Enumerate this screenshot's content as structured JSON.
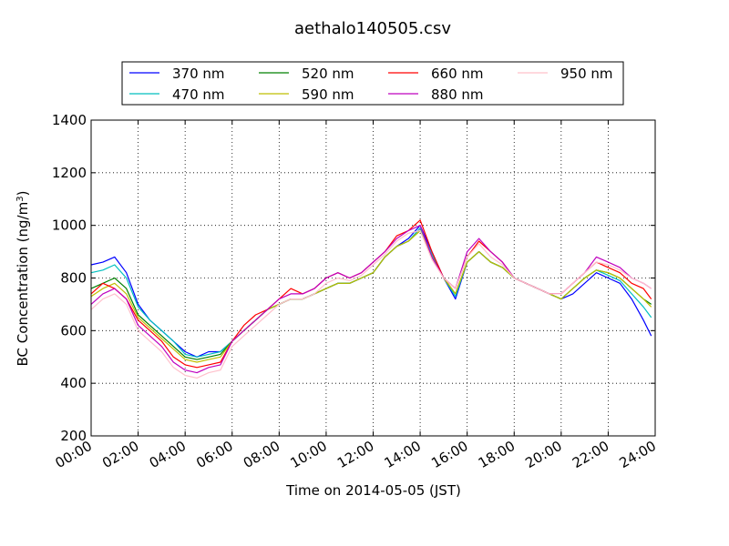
{
  "chart_data": {
    "type": "line",
    "title": "aethalo140505.csv",
    "xlabel": "Time on 2014-05-05 (JST)",
    "ylabel": "BC Concentration (ng/m",
    "ylabel_sup": "3",
    "ylabel_end": ")",
    "xlim": [
      "00:00",
      "24:00"
    ],
    "ylim": [
      200,
      1400
    ],
    "x_ticks": [
      "00:00",
      "02:00",
      "04:00",
      "06:00",
      "08:00",
      "10:00",
      "12:00",
      "14:00",
      "16:00",
      "18:00",
      "20:00",
      "22:00",
      "24:00"
    ],
    "y_ticks": [
      200,
      400,
      600,
      800,
      1000,
      1200,
      1400
    ],
    "grid": true,
    "legend_position": "top-center",
    "x": [
      "00:00",
      "00:30",
      "01:00",
      "01:30",
      "02:00",
      "02:30",
      "03:00",
      "03:30",
      "04:00",
      "04:30",
      "05:00",
      "05:30",
      "06:00",
      "06:30",
      "07:00",
      "07:30",
      "08:00",
      "08:30",
      "09:00",
      "09:30",
      "10:00",
      "10:30",
      "11:00",
      "11:30",
      "12:00",
      "12:30",
      "13:00",
      "13:30",
      "14:00",
      "14:30",
      "15:00",
      "15:30",
      "16:00",
      "16:30",
      "17:00",
      "17:30",
      "18:00",
      "18:30",
      "19:00",
      "19:30",
      "20:00",
      "20:30",
      "21:00",
      "21:30",
      "22:00",
      "22:30",
      "23:00",
      "23:30",
      "23:50"
    ],
    "series": [
      {
        "name": "370 nm",
        "color": "#0000ff",
        "values": [
          850,
          860,
          880,
          820,
          700,
          640,
          600,
          560,
          520,
          500,
          520,
          520,
          560,
          600,
          640,
          680,
          700,
          720,
          720,
          740,
          760,
          780,
          780,
          800,
          820,
          880,
          920,
          950,
          1000,
          900,
          800,
          720,
          860,
          900,
          860,
          840,
          800,
          780,
          760,
          740,
          720,
          740,
          780,
          820,
          800,
          780,
          720,
          640,
          580
        ]
      },
      {
        "name": "470 nm",
        "color": "#00bfbf",
        "values": [
          820,
          830,
          850,
          800,
          690,
          640,
          600,
          560,
          510,
          500,
          510,
          520,
          560,
          600,
          640,
          680,
          700,
          720,
          720,
          740,
          760,
          780,
          780,
          800,
          820,
          880,
          920,
          940,
          990,
          890,
          800,
          730,
          860,
          900,
          860,
          840,
          800,
          780,
          760,
          740,
          720,
          760,
          800,
          830,
          810,
          790,
          740,
          690,
          650
        ]
      },
      {
        "name": "520 nm",
        "color": "#008000",
        "values": [
          760,
          780,
          800,
          760,
          660,
          620,
          580,
          540,
          500,
          490,
          500,
          510,
          560,
          600,
          640,
          680,
          700,
          720,
          720,
          740,
          760,
          780,
          780,
          800,
          820,
          880,
          920,
          940,
          980,
          880,
          800,
          740,
          860,
          900,
          860,
          840,
          800,
          780,
          760,
          740,
          720,
          760,
          800,
          830,
          820,
          800,
          760,
          720,
          700
        ]
      },
      {
        "name": "590 nm",
        "color": "#bfbf00",
        "values": [
          730,
          760,
          780,
          740,
          650,
          610,
          570,
          530,
          490,
          480,
          490,
          500,
          560,
          600,
          640,
          680,
          700,
          720,
          720,
          740,
          760,
          780,
          780,
          800,
          820,
          880,
          920,
          940,
          980,
          880,
          800,
          740,
          860,
          900,
          860,
          840,
          800,
          780,
          760,
          740,
          720,
          760,
          800,
          830,
          820,
          800,
          760,
          720,
          690
        ]
      },
      {
        "name": "660 nm",
        "color": "#ff0000",
        "values": [
          740,
          780,
          760,
          720,
          640,
          600,
          560,
          500,
          470,
          460,
          470,
          480,
          560,
          620,
          660,
          680,
          720,
          760,
          740,
          760,
          800,
          820,
          800,
          820,
          860,
          900,
          960,
          980,
          1020,
          900,
          800,
          760,
          880,
          940,
          900,
          860,
          800,
          780,
          760,
          740,
          740,
          780,
          820,
          860,
          840,
          820,
          780,
          760,
          720
        ]
      },
      {
        "name": "880 nm",
        "color": "#bf00bf",
        "values": [
          700,
          740,
          760,
          720,
          620,
          580,
          540,
          480,
          450,
          440,
          460,
          470,
          560,
          600,
          640,
          680,
          720,
          740,
          740,
          760,
          800,
          820,
          800,
          820,
          860,
          900,
          950,
          980,
          1000,
          880,
          800,
          760,
          900,
          950,
          900,
          860,
          800,
          780,
          760,
          740,
          740,
          780,
          820,
          880,
          860,
          840,
          800,
          780,
          760
        ]
      },
      {
        "name": "950 nm",
        "color": "#ffc0cb",
        "values": [
          680,
          720,
          740,
          700,
          600,
          560,
          520,
          460,
          430,
          420,
          440,
          450,
          540,
          580,
          620,
          660,
          700,
          720,
          720,
          740,
          780,
          800,
          790,
          810,
          850,
          890,
          940,
          970,
          980,
          870,
          800,
          760,
          880,
          930,
          880,
          850,
          800,
          780,
          760,
          740,
          740,
          780,
          820,
          860,
          850,
          830,
          800,
          780,
          760
        ]
      }
    ]
  }
}
